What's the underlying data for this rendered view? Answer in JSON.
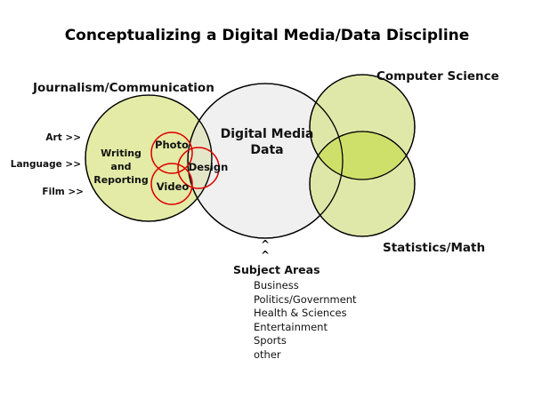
{
  "title": "Conceptualizing a Digital Media/Data Discipline",
  "circles": {
    "journalism": "Journalism/Communication",
    "digital_media": [
      "Digital Media",
      "Data"
    ],
    "computer_science": "Computer Science",
    "statistics": "Statistics/Math"
  },
  "inner": {
    "writing": [
      "Writing",
      "and",
      "Reporting"
    ],
    "photo": "Photo",
    "design": "Design",
    "video": "Video"
  },
  "inputs": [
    "Art >>",
    "Language >>",
    "Film >>"
  ],
  "subject": {
    "caret": "^",
    "heading": "Subject Areas",
    "items": [
      "Business",
      "Politics/Government",
      "Health & Sciences",
      "Entertainment",
      "Sports",
      "other"
    ]
  },
  "colors": {
    "journalism_fill": "#e3eba6",
    "digital_fill": "#e4e4e4",
    "cs_fill": "#dde6a0",
    "overlap_fill": "#cfe06a",
    "red": "#e00000"
  }
}
